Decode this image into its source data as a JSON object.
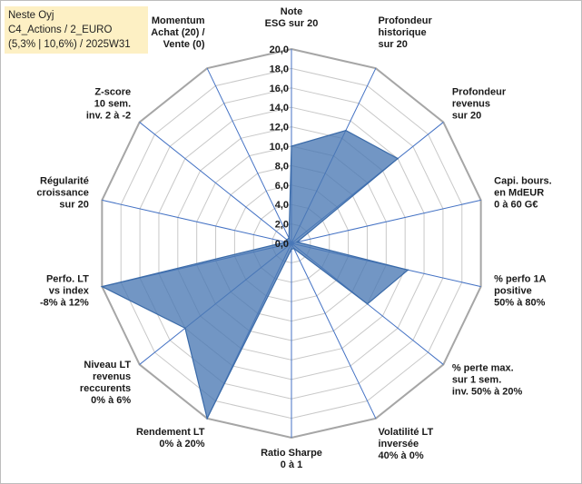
{
  "header": {
    "line1": "Neste Oyj",
    "line2": "C4_Actions / 2_EURO",
    "line3": "(5,3% | 10,6%) / 2025W31"
  },
  "colors": {
    "fill": "#4a78b4",
    "stroke": "#3a6aa8",
    "axis": "#4472c4",
    "grid": "#c8c8c8",
    "outer_grid": "#a6a6a6",
    "title_bg": "#fdf0c4"
  },
  "chart_data": {
    "type": "radar",
    "rmin": 0,
    "rmax": 20,
    "grid_step": 2,
    "tick_labels": [
      "0,0",
      "2,0",
      "4,0",
      "6,0",
      "8,0",
      "10,0",
      "12,0",
      "14,0",
      "16,0",
      "18,0",
      "20,0"
    ],
    "axes": [
      {
        "label": [
          "Note",
          "ESG sur 20"
        ],
        "value": 10.0
      },
      {
        "label": [
          "Profondeur",
          "historique",
          "sur 20"
        ],
        "value": 12.9
      },
      {
        "label": [
          "Profondeur",
          "revenus",
          "sur 20"
        ],
        "value": 14.0
      },
      {
        "label": [
          "Capi. bours.",
          "en MdEUR",
          "0 à 60 G€"
        ],
        "value": 0.6
      },
      {
        "label": [
          "% perfo 1A",
          "positive",
          "50% à 80%"
        ],
        "value": 12.3
      },
      {
        "label": [
          "% perte max.",
          "sur 1 sem.",
          "inv. 50% à 20%"
        ],
        "value": 10.0
      },
      {
        "label": [
          "Volatilité LT",
          "inversée",
          "40% à 0%"
        ],
        "value": 0.6
      },
      {
        "label": [
          "Ratio Sharpe",
          "0 à 1"
        ],
        "value": 0.6
      },
      {
        "label": [
          "Rendement LT",
          "0% à 20%"
        ],
        "value": 20.0
      },
      {
        "label": [
          "Niveau LT",
          "revenus",
          "reccurents",
          "0% à 6%"
        ],
        "value": 14.0
      },
      {
        "label": [
          "Perfo. LT",
          "vs index",
          "-8% à 12%"
        ],
        "value": 20.0
      },
      {
        "label": [
          "Régularité",
          "croissance",
          "sur 20"
        ],
        "value": 0.6
      },
      {
        "label": [
          "Z-score",
          "10 sem.",
          "inv. 2 à -2"
        ],
        "value": 0.6
      },
      {
        "label": [
          "Momentum",
          "Achat (20) /",
          "Vente (0)"
        ],
        "value": 0.6
      }
    ]
  }
}
